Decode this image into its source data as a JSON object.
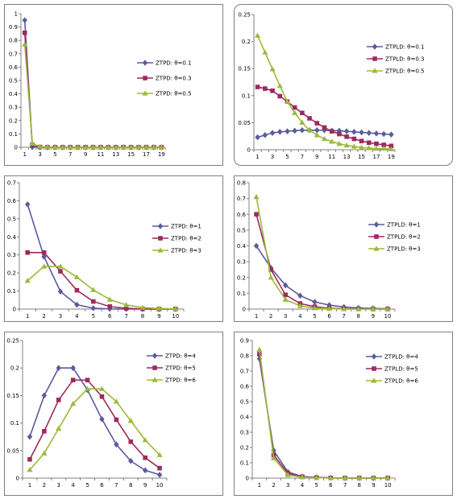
{
  "chart_data": [
    {
      "type": "line",
      "x": [
        1,
        2,
        3,
        4,
        5,
        6,
        7,
        8,
        9,
        10,
        11,
        12,
        13,
        14,
        15,
        16,
        17,
        18,
        19
      ],
      "xticks": [
        "1",
        "3",
        "5",
        "7",
        "9",
        "11",
        "13",
        "15",
        "17",
        "19"
      ],
      "ylim": [
        0,
        1
      ],
      "yticks": [
        "0",
        "0.1",
        "0.2",
        "0.3",
        "0.4",
        "0.5",
        "0.6",
        "0.7",
        "0.8",
        "0.9",
        "1"
      ],
      "legend_position": "right",
      "grid": false,
      "series": [
        {
          "name": "ZTPD: θ=0.1",
          "color": "#5B5B9E",
          "marker": "diamond",
          "values": [
            0.951,
            0.001,
            0,
            0,
            0,
            0,
            0,
            0,
            0,
            0,
            0,
            0,
            0,
            0,
            0,
            0,
            0,
            0,
            0
          ]
        },
        {
          "name": "ZTPD: θ=0.3",
          "color": "#9E2A5C",
          "marker": "square",
          "values": [
            0.857,
            0.018,
            0.002,
            0,
            0,
            0,
            0,
            0,
            0,
            0,
            0,
            0,
            0,
            0,
            0,
            0,
            0,
            0,
            0
          ]
        },
        {
          "name": "ZTPD: θ=0.5",
          "color": "#9BBB3A",
          "marker": "triangle",
          "values": [
            0.77,
            0.028,
            0.005,
            0.001,
            0,
            0,
            0,
            0,
            0,
            0,
            0,
            0,
            0,
            0,
            0,
            0,
            0,
            0,
            0
          ]
        }
      ]
    },
    {
      "type": "line",
      "x": [
        1,
        2,
        3,
        4,
        5,
        6,
        7,
        8,
        9,
        10,
        11,
        12,
        13,
        14,
        15,
        16,
        17,
        18,
        19
      ],
      "xticks": [
        "1",
        "3",
        "5",
        "7",
        "9",
        "11",
        "13",
        "15",
        "17",
        "19"
      ],
      "ylim": [
        0,
        0.25
      ],
      "yticks": [
        "0",
        "0.05",
        "0.1",
        "0.15",
        "0.2",
        "0.25"
      ],
      "legend_position": "right",
      "grid": false,
      "series": [
        {
          "name": "ZTPLD: θ=0.1",
          "color": "#5B5B9E",
          "marker": "diamond",
          "values": [
            0.023,
            0.027,
            0.031,
            0.033,
            0.034,
            0.035,
            0.036,
            0.036,
            0.036,
            0.036,
            0.035,
            0.035,
            0.034,
            0.033,
            0.032,
            0.031,
            0.03,
            0.029,
            0.028
          ]
        },
        {
          "name": "ZTPLD: θ=0.3",
          "color": "#9E2A5C",
          "marker": "square",
          "values": [
            0.116,
            0.113,
            0.109,
            0.099,
            0.089,
            0.078,
            0.068,
            0.058,
            0.049,
            0.041,
            0.034,
            0.029,
            0.024,
            0.02,
            0.016,
            0.013,
            0.011,
            0.009,
            0.007
          ]
        },
        {
          "name": "ZTPLD: θ=0.5",
          "color": "#9BBB3A",
          "marker": "triangle",
          "values": [
            0.211,
            0.18,
            0.149,
            0.118,
            0.089,
            0.068,
            0.05,
            0.036,
            0.027,
            0.02,
            0.015,
            0.011,
            0.008,
            0.006,
            0.004,
            0.003,
            0.002,
            0.002,
            0.001
          ]
        }
      ]
    },
    {
      "type": "line",
      "x": [
        1,
        2,
        3,
        4,
        5,
        6,
        7,
        8,
        9,
        10
      ],
      "xticks": [
        "1",
        "2",
        "3",
        "4",
        "5",
        "6",
        "7",
        "8",
        "9",
        "10"
      ],
      "ylim": [
        0,
        0.7
      ],
      "yticks": [
        "0",
        "0.1",
        "0.2",
        "0.3",
        "0.4",
        "0.5",
        "0.6",
        "0.7"
      ],
      "legend_position": "right",
      "grid": false,
      "series": [
        {
          "name": "ZTPD: θ=1",
          "color": "#5B5B9E",
          "marker": "diamond",
          "values": [
            0.58,
            0.29,
            0.097,
            0.024,
            0.005,
            0.001,
            0,
            0,
            0,
            0
          ]
        },
        {
          "name": "ZTPD: θ=2",
          "color": "#9E2A5C",
          "marker": "square",
          "values": [
            0.313,
            0.313,
            0.209,
            0.104,
            0.042,
            0.014,
            0.004,
            0.001,
            0,
            0
          ]
        },
        {
          "name": "ZTPD: θ=3",
          "color": "#9BBB3A",
          "marker": "triangle",
          "values": [
            0.157,
            0.236,
            0.236,
            0.177,
            0.106,
            0.053,
            0.023,
            0.008,
            0.003,
            0.001
          ]
        }
      ]
    },
    {
      "type": "line",
      "x": [
        1,
        2,
        3,
        4,
        5,
        6,
        7,
        8,
        9,
        10
      ],
      "xticks": [
        "1",
        "2",
        "3",
        "4",
        "5",
        "6",
        "7",
        "8",
        "9",
        "10"
      ],
      "ylim": [
        0,
        0.8
      ],
      "yticks": [
        "0",
        "0.1",
        "0.2",
        "0.3",
        "0.4",
        "0.5",
        "0.6",
        "0.7",
        "0.8"
      ],
      "legend_position": "right",
      "grid": false,
      "series": [
        {
          "name": "ZTPLD: θ=1",
          "color": "#5B5B9E",
          "marker": "diamond",
          "values": [
            0.4,
            0.26,
            0.15,
            0.085,
            0.045,
            0.025,
            0.013,
            0.007,
            0.004,
            0.002
          ]
        },
        {
          "name": "ZTPLD: θ=2",
          "color": "#9E2A5C",
          "marker": "square",
          "values": [
            0.6,
            0.25,
            0.09,
            0.035,
            0.015,
            0.005,
            0.002,
            0.001,
            0,
            0
          ]
        },
        {
          "name": "ZTPLD: θ=3",
          "color": "#9BBB3A",
          "marker": "triangle",
          "values": [
            0.71,
            0.2,
            0.06,
            0.02,
            0.006,
            0.002,
            0,
            0,
            0,
            0
          ]
        }
      ]
    },
    {
      "type": "line",
      "x": [
        1,
        2,
        3,
        4,
        5,
        6,
        7,
        8,
        9,
        10
      ],
      "xticks": [
        "1",
        "2",
        "3",
        "4",
        "5",
        "6",
        "7",
        "8",
        "9",
        "10"
      ],
      "ylim": [
        0,
        0.25
      ],
      "yticks": [
        "0",
        "0.05",
        "0.1",
        "0.15",
        "0.2",
        "0.25"
      ],
      "legend_position": "top-right",
      "grid": false,
      "series": [
        {
          "name": "ZTPD: θ=4",
          "color": "#5B5B9E",
          "marker": "diamond",
          "values": [
            0.075,
            0.15,
            0.2,
            0.2,
            0.16,
            0.107,
            0.061,
            0.031,
            0.014,
            0.006
          ]
        },
        {
          "name": "ZTPD: θ=5",
          "color": "#9E2A5C",
          "marker": "square",
          "values": [
            0.034,
            0.085,
            0.142,
            0.178,
            0.178,
            0.148,
            0.106,
            0.066,
            0.037,
            0.018
          ]
        },
        {
          "name": "ZTPD: θ=6",
          "color": "#9BBB3A",
          "marker": "triangle",
          "values": [
            0.015,
            0.045,
            0.09,
            0.135,
            0.162,
            0.162,
            0.139,
            0.104,
            0.069,
            0.042
          ]
        }
      ]
    },
    {
      "type": "line",
      "x": [
        1,
        2,
        3,
        4,
        5,
        6,
        7,
        8,
        9,
        10
      ],
      "xticks": [
        "1",
        "2",
        "3",
        "4",
        "5",
        "6",
        "7",
        "8",
        "9",
        "10"
      ],
      "ylim": [
        0,
        0.9
      ],
      "yticks": [
        "0",
        "0.1",
        "0.2",
        "0.3",
        "0.4",
        "0.5",
        "0.6",
        "0.7",
        "0.8",
        "0.9"
      ],
      "legend_position": "right",
      "grid": false,
      "series": [
        {
          "name": "ZTPLD: θ=4",
          "color": "#5B5B9E",
          "marker": "diamond",
          "values": [
            0.78,
            0.18,
            0.04,
            0.01,
            0.005,
            0.002,
            0,
            0,
            0,
            0
          ]
        },
        {
          "name": "ZTPLD: θ=5",
          "color": "#9E2A5C",
          "marker": "square",
          "values": [
            0.81,
            0.15,
            0.03,
            0.008,
            0.003,
            0.001,
            0,
            0,
            0,
            0
          ]
        },
        {
          "name": "ZTPLD: θ=6",
          "color": "#9BBB3A",
          "marker": "triangle",
          "values": [
            0.84,
            0.13,
            0.02,
            0.006,
            0.002,
            0,
            0,
            0,
            0,
            0
          ]
        }
      ]
    }
  ]
}
